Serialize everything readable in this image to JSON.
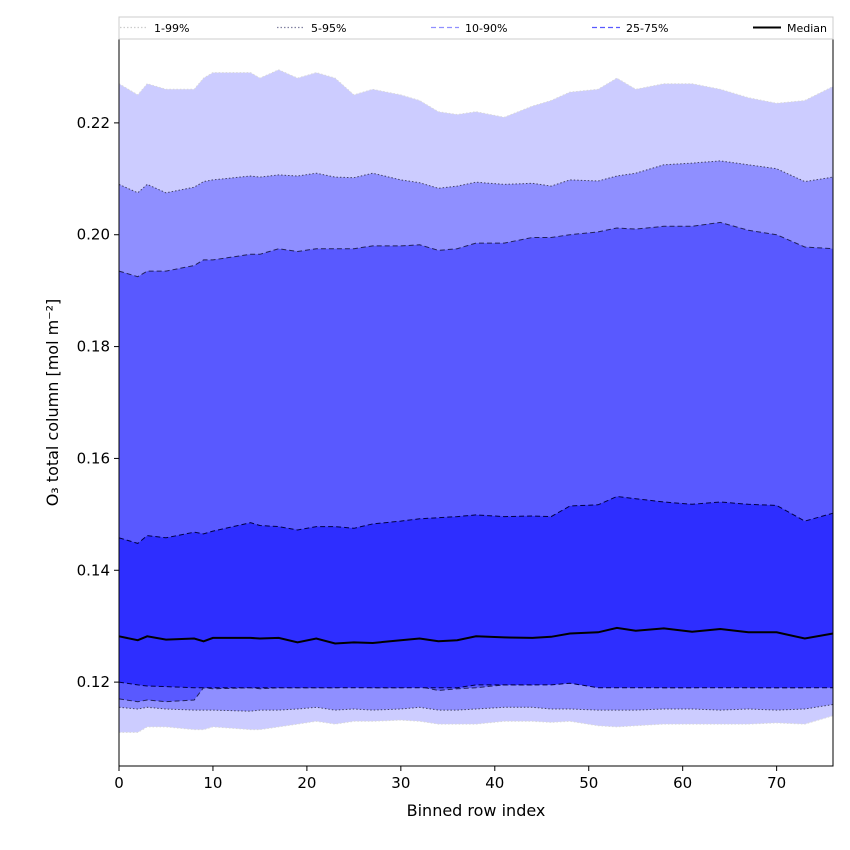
{
  "chart_data": {
    "type": "area",
    "xlabel": "Binned row index",
    "ylabel": "O₃ total column [mol m⁻²]",
    "xlim": [
      0,
      76
    ],
    "ylim": [
      0.105,
      0.235
    ],
    "x_ticks": [
      0,
      10,
      20,
      30,
      40,
      50,
      60,
      70
    ],
    "y_ticks": [
      0.12,
      0.14,
      0.16,
      0.18,
      0.2,
      0.22
    ],
    "y_tick_labels": [
      "0.12",
      "0.14",
      "0.16",
      "0.18",
      "0.20",
      "0.22"
    ],
    "grid": false,
    "legend_position": "top",
    "x_anchors": [
      0,
      2,
      3,
      5,
      8,
      9,
      10,
      14,
      15,
      17,
      19,
      21,
      23,
      25,
      27,
      30,
      32,
      34,
      36,
      38,
      41,
      44,
      46,
      48,
      51,
      53,
      55,
      58,
      61,
      64,
      67,
      70,
      73,
      76
    ],
    "series": [
      {
        "name": "1-99%",
        "color": "#ccccff",
        "line_color": "#d8d8d8",
        "line_style": "dotted",
        "lower": [
          0.111,
          0.111,
          0.112,
          0.112,
          0.1115,
          0.1115,
          0.112,
          0.1115,
          0.1115,
          0.112,
          0.1125,
          0.113,
          0.1125,
          0.113,
          0.113,
          0.1132,
          0.113,
          0.1125,
          0.1125,
          0.1125,
          0.113,
          0.113,
          0.1128,
          0.113,
          0.1122,
          0.112,
          0.1122,
          0.1125,
          0.1125,
          0.1125,
          0.1125,
          0.1127,
          0.1125,
          0.114
        ],
        "upper": [
          0.227,
          0.225,
          0.227,
          0.226,
          0.226,
          0.228,
          0.229,
          0.229,
          0.228,
          0.2295,
          0.228,
          0.229,
          0.228,
          0.225,
          0.226,
          0.225,
          0.224,
          0.222,
          0.2215,
          0.222,
          0.221,
          0.223,
          0.224,
          0.2255,
          0.226,
          0.228,
          0.226,
          0.227,
          0.227,
          0.226,
          0.2245,
          0.2235,
          0.224,
          0.2265
        ]
      },
      {
        "name": "5-95%",
        "color": "#8f8fff",
        "line_color": "#444466",
        "line_style": "dotted",
        "lower": [
          0.1155,
          0.1152,
          0.1155,
          0.1152,
          0.115,
          0.115,
          0.115,
          0.1148,
          0.115,
          0.115,
          0.1152,
          0.1155,
          0.115,
          0.1152,
          0.115,
          0.1152,
          0.1155,
          0.115,
          0.115,
          0.1152,
          0.1155,
          0.1155,
          0.1152,
          0.1152,
          0.115,
          0.115,
          0.115,
          0.1152,
          0.1152,
          0.115,
          0.1152,
          0.115,
          0.1152,
          0.116
        ],
        "upper": [
          0.209,
          0.2075,
          0.209,
          0.2075,
          0.2085,
          0.2095,
          0.2098,
          0.2105,
          0.2103,
          0.2107,
          0.2105,
          0.211,
          0.2103,
          0.2102,
          0.211,
          0.2098,
          0.2093,
          0.2083,
          0.2087,
          0.2094,
          0.209,
          0.2092,
          0.2087,
          0.2098,
          0.2096,
          0.2105,
          0.211,
          0.2125,
          0.2128,
          0.2132,
          0.2125,
          0.2118,
          0.2095,
          0.2103
        ]
      },
      {
        "name": "10-90%",
        "color": "#5959ff",
        "line_color": "#22225a",
        "line_style": "dashed",
        "lower": [
          0.117,
          0.1165,
          0.1168,
          0.1165,
          0.1168,
          0.119,
          0.1188,
          0.119,
          0.1188,
          0.119,
          0.119,
          0.119,
          0.119,
          0.1192,
          0.119,
          0.119,
          0.1192,
          0.1185,
          0.1188,
          0.119,
          0.1195,
          0.1195,
          0.1198,
          0.1205,
          0.1195,
          0.1195,
          0.1192,
          0.119,
          0.119,
          0.1192,
          0.119,
          0.119,
          0.119,
          0.1195
        ],
        "upper": [
          0.1935,
          0.1925,
          0.1935,
          0.1935,
          0.1945,
          0.1955,
          0.1955,
          0.1965,
          0.1965,
          0.1975,
          0.197,
          0.1975,
          0.1975,
          0.1975,
          0.198,
          0.198,
          0.1982,
          0.1972,
          0.1975,
          0.1985,
          0.1985,
          0.1995,
          0.1995,
          0.2,
          0.2005,
          0.2012,
          0.201,
          0.2015,
          0.2015,
          0.2022,
          0.2008,
          0.2,
          0.1978,
          0.1975
        ]
      },
      {
        "name": "25-75%",
        "color": "#2e2eff",
        "line_color": "#000044",
        "line_style": "dashed",
        "lower": [
          0.12,
          0.1195,
          0.1193,
          0.1192,
          0.119,
          0.119,
          0.119,
          0.119,
          0.119,
          0.119,
          0.119,
          0.119,
          0.119,
          0.119,
          0.119,
          0.119,
          0.119,
          0.119,
          0.119,
          0.1195,
          0.1195,
          0.1195,
          0.1195,
          0.1198,
          0.119,
          0.119,
          0.119,
          0.119,
          0.119,
          0.119,
          0.119,
          0.119,
          0.119,
          0.119
        ],
        "upper": [
          0.1458,
          0.1448,
          0.1462,
          0.1458,
          0.1468,
          0.1465,
          0.147,
          0.1485,
          0.148,
          0.1478,
          0.1472,
          0.1478,
          0.1478,
          0.1475,
          0.1483,
          0.1488,
          0.1492,
          0.1494,
          0.1496,
          0.1499,
          0.1496,
          0.1497,
          0.1496,
          0.1515,
          0.1517,
          0.1532,
          0.1528,
          0.1522,
          0.1518,
          0.1522,
          0.1518,
          0.1516,
          0.1488,
          0.1502
        ]
      }
    ],
    "median": {
      "name": "Median",
      "color": "#000000",
      "values": [
        0.1282,
        0.1275,
        0.1282,
        0.1276,
        0.1278,
        0.1273,
        0.1279,
        0.1279,
        0.1278,
        0.1279,
        0.1271,
        0.1278,
        0.1269,
        0.1271,
        0.127,
        0.1275,
        0.1278,
        0.1273,
        0.1275,
        0.1282,
        0.128,
        0.1279,
        0.1281,
        0.1287,
        0.1289,
        0.1297,
        0.1292,
        0.1296,
        0.129,
        0.1295,
        0.1289,
        0.1289,
        0.1278,
        0.1287
      ]
    },
    "legend": [
      {
        "label": "1-99%",
        "style": "dotted",
        "color": "#cccccc"
      },
      {
        "label": "5-95%",
        "style": "dotted",
        "color": "#8080a0"
      },
      {
        "label": "10-90%",
        "style": "dashed",
        "color": "#8f8fff"
      },
      {
        "label": "25-75%",
        "style": "dashed",
        "color": "#5959ff"
      },
      {
        "label": "Median",
        "style": "solid",
        "color": "#000000"
      }
    ]
  }
}
